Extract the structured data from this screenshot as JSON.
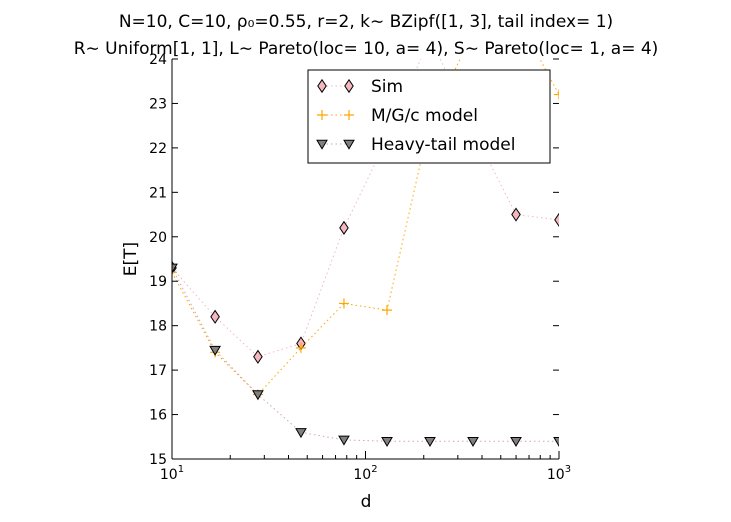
{
  "chart_data": {
    "type": "line",
    "title_lines": [
      "N=10, C=10, ρ₀=0.55, r=2, k∼ BZipf([1, 3], tail index= 1)",
      "R∼ Uniform[1, 1], L∼ Pareto(loc= 10, a= 4), S∼ Pareto(loc= 1, a= 4)"
    ],
    "xlabel": "d",
    "ylabel": "E[T]",
    "xscale": "log",
    "xlim": [
      10,
      1000
    ],
    "ylim": [
      15,
      24
    ],
    "x_ticks": [
      {
        "value": 10,
        "base": "10",
        "exp": "1"
      },
      {
        "value": 100,
        "base": "10",
        "exp": "2"
      },
      {
        "value": 1000,
        "base": "10",
        "exp": "3"
      }
    ],
    "y_ticks": [
      "15",
      "16",
      "17",
      "18",
      "19",
      "20",
      "21",
      "22",
      "23",
      "24"
    ],
    "grid": false,
    "legend_position": "upper-center",
    "series": [
      {
        "name": "Sim",
        "marker": "diamond",
        "color": "#f4b6bf",
        "edge_color": "#000000",
        "line_color": "#f4b6bf",
        "x": [
          10,
          16.7,
          27.8,
          46.4,
          77.4,
          129.2,
          215.4,
          359.4,
          599.5,
          1000
        ],
        "y": [
          19.3,
          18.2,
          17.3,
          17.6,
          20.2,
          22.2,
          24.5,
          22.4,
          20.5,
          20.38
        ]
      },
      {
        "name": "M/G/c model",
        "marker": "plus",
        "color": "#ffa500",
        "line_color": "#ffa500",
        "x": [
          10,
          16.7,
          27.8,
          46.4,
          77.4,
          129.2,
          215.4,
          359.4,
          599.5,
          1000
        ],
        "y": [
          19.2,
          17.4,
          16.45,
          17.5,
          18.5,
          18.35,
          22.6,
          24.6,
          25.0,
          23.2
        ]
      },
      {
        "name": "Heavy-tail model",
        "marker": "triangle-down",
        "color": "#808080",
        "edge_color": "#000000",
        "line_color": "#d3a4b4",
        "x": [
          10,
          16.7,
          27.8,
          46.4,
          77.4,
          129.2,
          215.4,
          359.4,
          599.5,
          1000
        ],
        "y": [
          19.3,
          17.45,
          16.45,
          15.6,
          15.43,
          15.4,
          15.4,
          15.4,
          15.4,
          15.4
        ]
      }
    ]
  }
}
